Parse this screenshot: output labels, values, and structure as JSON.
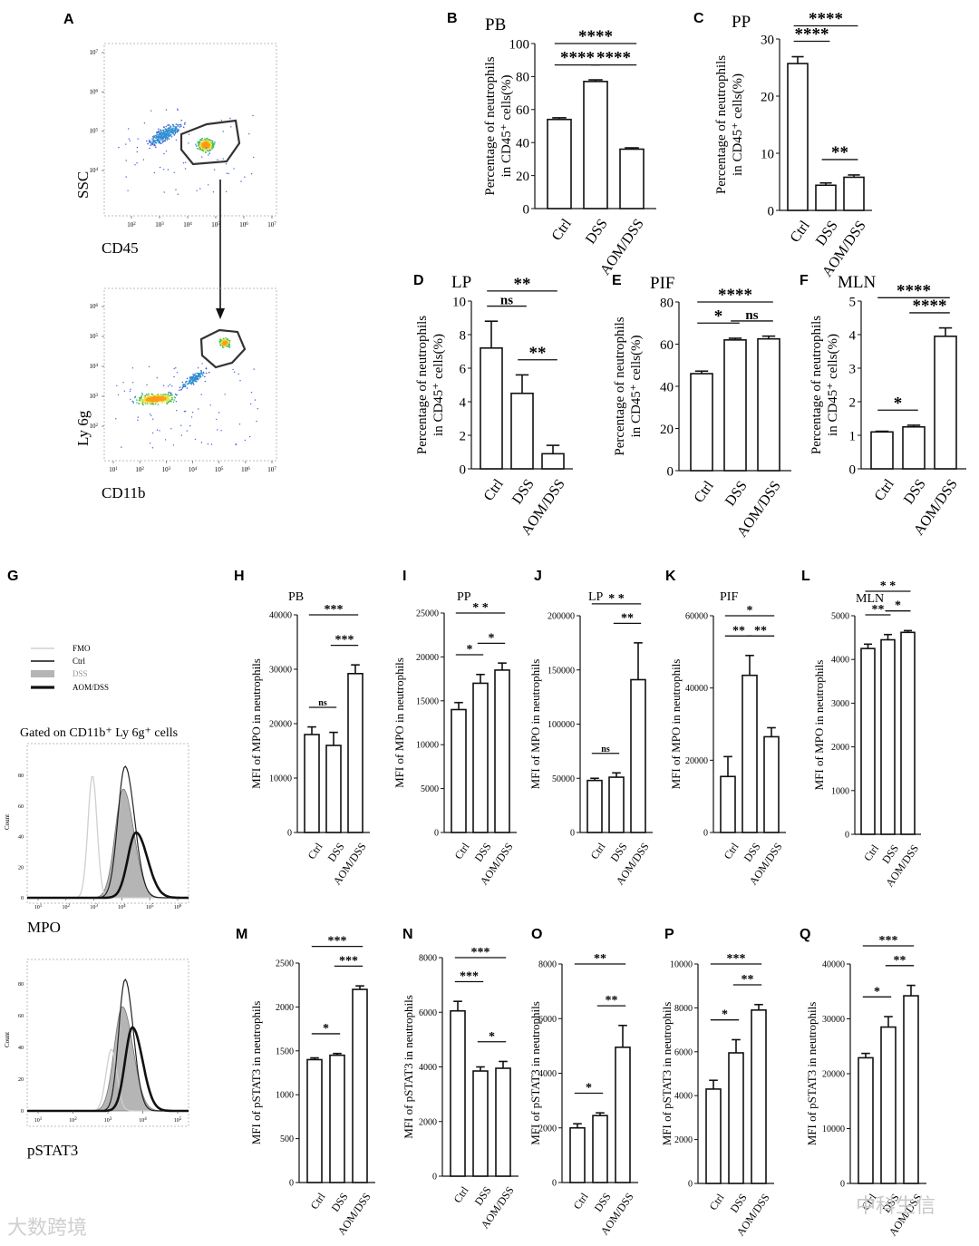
{
  "figure": {
    "flow": {
      "plot1": {
        "letter": "A",
        "xlabel": "CD45",
        "ylabel": "SSC",
        "xticks": [
          "10^2",
          "10^3",
          "10^4",
          "10^5",
          "10^6",
          "10^7"
        ],
        "yticks": [
          "10^4",
          "10^5",
          "10^6",
          "10^7"
        ]
      },
      "plot2": {
        "xlabel": "CD11b",
        "ylabel": "Ly 6g",
        "xticks": [
          "10^1",
          "10^2",
          "10^3",
          "10^4",
          "10^5",
          "10^6",
          "10^7"
        ],
        "yticks": [
          "10^2",
          "10^3",
          "10^4",
          "10^5",
          "10^6"
        ]
      }
    },
    "histogram": {
      "letter": "G",
      "legend": [
        "FMO",
        "Ctrl",
        "DSS",
        "AOM/DSS"
      ],
      "gate_label": "Gated on CD11b⁺ Ly 6g⁺ cells",
      "count_label": "Count",
      "mpo": {
        "xlabel": "MPO",
        "xticks": [
          "10^1",
          "10^2",
          "10^3",
          "10^4",
          "10^5",
          "10^6"
        ],
        "yticks": [
          "0",
          "20",
          "40",
          "60",
          "80"
        ]
      },
      "pstat3": {
        "xlabel": "pSTAT3",
        "xticks": [
          "10^1",
          "10^2",
          "10^3",
          "10^4",
          "10^5"
        ],
        "yticks": [
          "0",
          "20",
          "40",
          "60",
          "80"
        ]
      }
    },
    "watermarks": {
      "left": "大数跨境",
      "right": "中科生信"
    }
  },
  "chart_data": [
    {
      "letter": "B",
      "title": "PB",
      "type": "bar",
      "categories": [
        "Ctrl",
        "DSS",
        "AOM/DSS"
      ],
      "values": [
        54,
        77,
        36
      ],
      "errors": [
        1,
        1,
        0.8
      ],
      "ylabel": "Percentage of neutrophils in CD45⁺ cells(%)",
      "ylim": [
        0,
        100
      ],
      "yticks": [
        0,
        20,
        40,
        60,
        80,
        100
      ],
      "sig": [
        {
          "from": 1,
          "to": 2,
          "label": "****"
        },
        {
          "from": 2,
          "to": 3,
          "label": "****"
        },
        {
          "from": 1,
          "to": 3,
          "label": "****"
        }
      ]
    },
    {
      "letter": "C",
      "title": "PP",
      "type": "bar",
      "categories": [
        "Ctrl",
        "DSS",
        "AOM/DSS"
      ],
      "values": [
        25.7,
        4.4,
        5.8
      ],
      "errors": [
        1.2,
        0.4,
        0.4
      ],
      "ylabel": "Percentage of neutrophils in CD45⁺ cells(%)",
      "ylim": [
        0,
        30
      ],
      "yticks": [
        0,
        10,
        20,
        30
      ],
      "sig": [
        {
          "from": 1,
          "to": 2,
          "label": "****"
        },
        {
          "from": 1,
          "to": 3,
          "label": "****"
        },
        {
          "from": 2,
          "to": 3,
          "label": "**"
        }
      ]
    },
    {
      "letter": "D",
      "title": "LP",
      "type": "bar",
      "categories": [
        "Ctrl",
        "DSS",
        "AOM/DSS"
      ],
      "values": [
        7.2,
        4.5,
        0.9
      ],
      "errors": [
        1.6,
        1.1,
        0.5
      ],
      "ylabel": "Percentage of neutrophils in CD45⁺ cells(%)",
      "ylim": [
        0,
        10
      ],
      "yticks": [
        0,
        2,
        4,
        6,
        8,
        10
      ],
      "sig": [
        {
          "from": 1,
          "to": 2,
          "label": "ns"
        },
        {
          "from": 1,
          "to": 3,
          "label": "**"
        },
        {
          "from": 2,
          "to": 3,
          "label": "**"
        }
      ]
    },
    {
      "letter": "E",
      "title": "PIF",
      "type": "bar",
      "categories": [
        "Ctrl",
        "DSS",
        "AOM/DSS"
      ],
      "values": [
        46,
        62,
        62.5
      ],
      "errors": [
        1.2,
        0.8,
        1.3
      ],
      "ylabel": "Percentage of neutrophils in CD45⁺ cells(%)",
      "ylim": [
        0,
        80
      ],
      "yticks": [
        0,
        20,
        40,
        60,
        80
      ],
      "sig": [
        {
          "from": 1,
          "to": 2,
          "label": "*"
        },
        {
          "from": 1,
          "to": 3,
          "label": "****"
        },
        {
          "from": 2,
          "to": 3,
          "label": "ns"
        }
      ]
    },
    {
      "letter": "F",
      "title": "MLN",
      "type": "bar",
      "categories": [
        "Ctrl",
        "DSS",
        "AOM/DSS"
      ],
      "values": [
        1.1,
        1.25,
        3.95
      ],
      "errors": [
        0.02,
        0.05,
        0.25
      ],
      "ylabel": "Percentage of neutrophils in CD45⁺ cells(%)",
      "ylim": [
        0,
        5
      ],
      "yticks": [
        0,
        1,
        2,
        3,
        4,
        5
      ],
      "sig": [
        {
          "from": 1,
          "to": 2,
          "label": "*"
        },
        {
          "from": 1,
          "to": 3,
          "label": "****"
        },
        {
          "from": 2,
          "to": 3,
          "label": "****"
        }
      ]
    },
    {
      "letter": "H",
      "title": "PB",
      "type": "bar",
      "categories": [
        "Ctrl",
        "DSS",
        "AOM/DSS"
      ],
      "values": [
        18000,
        16000,
        29200
      ],
      "errors": [
        1400,
        2400,
        1600
      ],
      "ylabel": "MFI of MPO in neutrophils",
      "ylim": [
        0,
        40000
      ],
      "yticks": [
        0,
        10000,
        20000,
        30000,
        40000
      ],
      "sig": [
        {
          "from": 1,
          "to": 2,
          "label": "ns"
        },
        {
          "from": 1,
          "to": 3,
          "label": "***"
        },
        {
          "from": 2,
          "to": 3,
          "label": "***"
        }
      ]
    },
    {
      "letter": "I",
      "title": "PP",
      "type": "bar",
      "categories": [
        "Ctrl",
        "DSS",
        "AOM/DSS"
      ],
      "values": [
        14000,
        17000,
        18500
      ],
      "errors": [
        800,
        1000,
        800
      ],
      "ylabel": "MFI of MPO in neutrophils",
      "ylim": [
        0,
        25000
      ],
      "yticks": [
        0,
        5000,
        10000,
        15000,
        20000,
        25000
      ],
      "sig": [
        {
          "from": 1,
          "to": 2,
          "label": "*"
        },
        {
          "from": 1,
          "to": 3,
          "label": "* *"
        },
        {
          "from": 2,
          "to": 3,
          "label": "*"
        }
      ]
    },
    {
      "letter": "J",
      "title": "LP",
      "type": "bar",
      "categories": [
        "Ctrl",
        "DSS",
        "AOM/DSS"
      ],
      "values": [
        48000,
        51000,
        141000
      ],
      "errors": [
        2000,
        4000,
        34000
      ],
      "ylabel": "MFI of MPO in neutrophils",
      "ylim": [
        0,
        200000
      ],
      "yticks": [
        0,
        50000,
        100000,
        150000,
        200000
      ],
      "sig": [
        {
          "from": 1,
          "to": 2,
          "label": "ns"
        },
        {
          "from": 1,
          "to": 3,
          "label": "* *"
        },
        {
          "from": 2,
          "to": 3,
          "label": "**"
        }
      ]
    },
    {
      "letter": "K",
      "title": "PIF",
      "type": "bar",
      "categories": [
        "Ctrl",
        "DSS",
        "AOM/DSS"
      ],
      "values": [
        15500,
        43500,
        26500
      ],
      "errors": [
        5500,
        5500,
        2500
      ],
      "ylabel": "MFI of MPO in neutrophils",
      "ylim": [
        0,
        60000
      ],
      "yticks": [
        0,
        20000,
        40000,
        60000
      ],
      "sig": [
        {
          "from": 1,
          "to": 2,
          "label": "**"
        },
        {
          "from": 2,
          "to": 3,
          "label": "**"
        },
        {
          "from": 1,
          "to": 3,
          "label": "*"
        }
      ]
    },
    {
      "letter": "L",
      "title": "MLN",
      "type": "bar",
      "categories": [
        "Ctrl",
        "DSS",
        "AOM/DSS"
      ],
      "values": [
        4250,
        4450,
        4620
      ],
      "errors": [
        100,
        120,
        40
      ],
      "ylabel": "MFI of MPO in neutrophils",
      "ylim": [
        0,
        5000
      ],
      "yticks": [
        0,
        1000,
        2000,
        3000,
        4000,
        5000
      ],
      "sig": [
        {
          "from": 1,
          "to": 2,
          "label": "**"
        },
        {
          "from": 1,
          "to": 3,
          "label": "* *"
        },
        {
          "from": 2,
          "to": 3,
          "label": "*"
        }
      ]
    },
    {
      "letter": "M",
      "title": "",
      "type": "bar",
      "categories": [
        "Ctrl",
        "DSS",
        "AOM/DSS"
      ],
      "values": [
        1400,
        1450,
        2200
      ],
      "errors": [
        20,
        20,
        40
      ],
      "ylabel": "MFI of pSTAT3 in neutrophils",
      "ylim": [
        0,
        2500
      ],
      "yticks": [
        0,
        500,
        1000,
        1500,
        2000,
        2500
      ],
      "sig": [
        {
          "from": 1,
          "to": 2,
          "label": "*"
        },
        {
          "from": 1,
          "to": 3,
          "label": "***"
        },
        {
          "from": 2,
          "to": 3,
          "label": "***"
        }
      ]
    },
    {
      "letter": "N",
      "title": "",
      "type": "bar",
      "categories": [
        "Ctrl",
        "DSS",
        "AOM/DSS"
      ],
      "values": [
        6050,
        3850,
        3950
      ],
      "errors": [
        350,
        150,
        250
      ],
      "ylabel": "MFI of pSTAT3 in neutrophils",
      "ylim": [
        0,
        8000
      ],
      "yticks": [
        0,
        2000,
        4000,
        6000,
        8000
      ],
      "sig": [
        {
          "from": 1,
          "to": 2,
          "label": "***"
        },
        {
          "from": 1,
          "to": 3,
          "label": "***"
        },
        {
          "from": 2,
          "to": 3,
          "label": "*"
        }
      ]
    },
    {
      "letter": "O",
      "title": "",
      "type": "bar",
      "categories": [
        "Ctrl",
        "DSS",
        "AOM/DSS"
      ],
      "values": [
        2000,
        2450,
        4950
      ],
      "errors": [
        150,
        100,
        800
      ],
      "ylabel": "MFI of pSTAT3 in neutrophils",
      "ylim": [
        0,
        8000
      ],
      "yticks": [
        0,
        2000,
        4000,
        6000,
        8000
      ],
      "sig": [
        {
          "from": 1,
          "to": 2,
          "label": "*"
        },
        {
          "from": 1,
          "to": 3,
          "label": "**"
        },
        {
          "from": 2,
          "to": 3,
          "label": "**"
        }
      ]
    },
    {
      "letter": "P",
      "title": "",
      "type": "bar",
      "categories": [
        "Ctrl",
        "DSS",
        "AOM/DSS"
      ],
      "values": [
        4300,
        5950,
        7900
      ],
      "errors": [
        400,
        600,
        250
      ],
      "ylabel": "MFI of pSTAT3 in neutrophils",
      "ylim": [
        0,
        10000
      ],
      "yticks": [
        0,
        2000,
        4000,
        6000,
        8000,
        10000
      ],
      "sig": [
        {
          "from": 1,
          "to": 2,
          "label": "*"
        },
        {
          "from": 1,
          "to": 3,
          "label": "***"
        },
        {
          "from": 2,
          "to": 3,
          "label": "**"
        }
      ]
    },
    {
      "letter": "Q",
      "title": "",
      "type": "bar",
      "categories": [
        "Ctrl",
        "DSS",
        "AOM/DSS"
      ],
      "values": [
        22900,
        28500,
        34200
      ],
      "errors": [
        800,
        1900,
        1900
      ],
      "ylabel": "MFI of pSTAT3 in neutrophils",
      "ylim": [
        0,
        40000
      ],
      "yticks": [
        0,
        10000,
        20000,
        30000,
        40000
      ],
      "sig": [
        {
          "from": 1,
          "to": 2,
          "label": "*"
        },
        {
          "from": 1,
          "to": 3,
          "label": "***"
        },
        {
          "from": 2,
          "to": 3,
          "label": "**"
        }
      ]
    }
  ]
}
